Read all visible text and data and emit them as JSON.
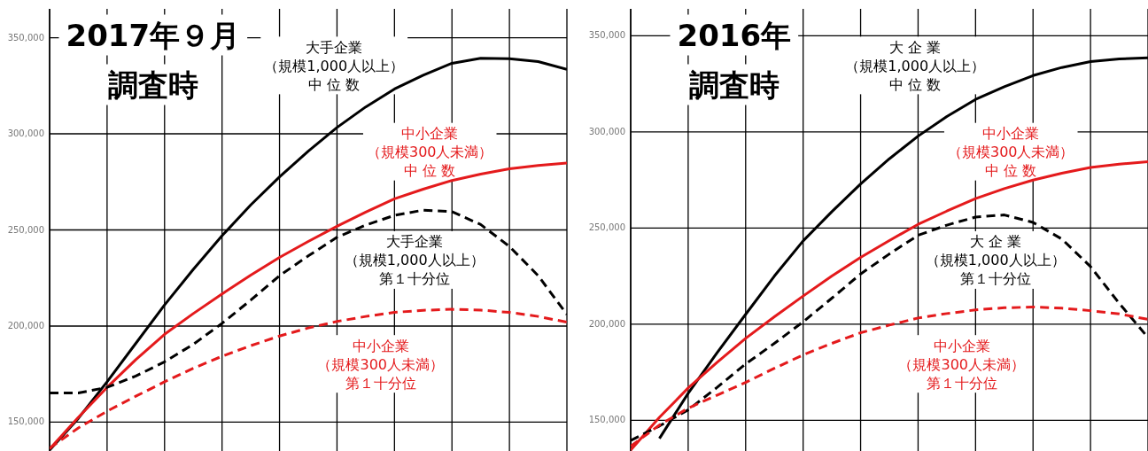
{
  "chart_data": [
    {
      "type": "line",
      "title": "2017年９月",
      "subtitle": "調査時",
      "categories": [
        null,
        null,
        null,
        null,
        null,
        null,
        null,
        null,
        null,
        null,
        null,
        null,
        null,
        null,
        null,
        null,
        null,
        null,
        null
      ],
      "ylim": [
        135000,
        365000
      ],
      "yticks": [
        {
          "value": 150000,
          "label": "150,000"
        },
        {
          "value": 200000,
          "label": "200,000"
        },
        {
          "value": 250000,
          "label": "250,000"
        },
        {
          "value": 300000,
          "label": "300,000"
        },
        {
          "value": 350000,
          "label": "350,000"
        }
      ],
      "grid": true,
      "tick_labels": "y",
      "series": [
        {
          "name": "大手企業（規模1,000人以上）中 位 数",
          "color": "#000000",
          "line_style": "solid",
          "values": [
            135500,
            152000,
            171000,
            191000,
            211000,
            229500,
            247000,
            263000,
            277600,
            291000,
            303300,
            314000,
            323300,
            330500,
            336700,
            339300,
            339100,
            337600,
            333500
          ]
        },
        {
          "name": "中小企業（規模300人未満）中 位 数",
          "color": "#e41a1c",
          "line_style": "solid",
          "values": [
            136000,
            152500,
            168100,
            182500,
            195700,
            206500,
            216700,
            226500,
            235700,
            244000,
            251900,
            259300,
            266200,
            271200,
            275700,
            279000,
            281800,
            283500,
            284800
          ]
        },
        {
          "name": "大手企業（規模1,000人以上）第１十分位",
          "color": "#000000",
          "line_style": "dashed",
          "values": [
            165200,
            165200,
            168100,
            174000,
            181400,
            190500,
            201400,
            213500,
            226200,
            236500,
            246200,
            252500,
            257600,
            260300,
            259500,
            252800,
            241400,
            226200,
            206000
          ]
        },
        {
          "name": "中小企業（規模300人未満）第１十分位",
          "color": "#e41a1c",
          "line_style": "dashed",
          "values": [
            136500,
            147000,
            155700,
            163500,
            171000,
            178000,
            184300,
            189800,
            194800,
            199000,
            202400,
            205000,
            207100,
            208200,
            208700,
            208300,
            207100,
            205000,
            202000
          ]
        }
      ]
    },
    {
      "type": "line",
      "title": "2016年",
      "subtitle": "調査時",
      "categories": [
        null,
        null,
        null,
        null,
        null,
        null,
        null,
        null,
        null,
        null,
        null,
        null,
        null,
        null,
        null,
        null,
        null,
        null,
        null
      ],
      "ylim": [
        134000,
        364000
      ],
      "yticks": [
        {
          "value": 150000,
          "label": "150,000"
        },
        {
          "value": 200000,
          "label": "200,000"
        },
        {
          "value": 250000,
          "label": "250,000"
        },
        {
          "value": 300000,
          "label": "300,000"
        },
        {
          "value": 350000,
          "label": "350,000"
        }
      ],
      "grid": true,
      "tick_labels": "y",
      "series": [
        {
          "name": "大 企 業（規模1,000人以上）中 位 数",
          "color": "#000000",
          "line_style": "solid",
          "values": [
            null,
            140500,
            164000,
            185000,
            205100,
            225000,
            243300,
            258500,
            272900,
            286000,
            297800,
            308000,
            316900,
            323500,
            329300,
            333500,
            336600,
            338000,
            338500
          ]
        },
        {
          "name": "中小企業（規模300人未満）中 位 数",
          "color": "#e41a1c",
          "line_style": "solid",
          "values": [
            134500,
            151500,
            166800,
            180000,
            192600,
            203800,
            214600,
            225000,
            234700,
            243500,
            251900,
            258800,
            265300,
            270500,
            274900,
            278500,
            281500,
            283200,
            284500
          ]
        },
        {
          "name": "大 企 業（規模1,000人以上）第１十分位",
          "color": "#000000",
          "line_style": "dashed",
          "values": [
            139500,
            147000,
            155400,
            167000,
            179300,
            190000,
            201200,
            213500,
            226100,
            236500,
            246200,
            251500,
            255700,
            256800,
            252900,
            244300,
            229900,
            210800,
            193000
          ]
        },
        {
          "name": "中小企業（規模300人未満）第１十分位",
          "color": "#e41a1c",
          "line_style": "dashed",
          "values": [
            136500,
            147500,
            156300,
            163000,
            169700,
            177000,
            184000,
            190000,
            195500,
            199500,
            203200,
            205500,
            207400,
            208500,
            208900,
            208300,
            207000,
            205300,
            202500
          ]
        }
      ]
    }
  ]
}
